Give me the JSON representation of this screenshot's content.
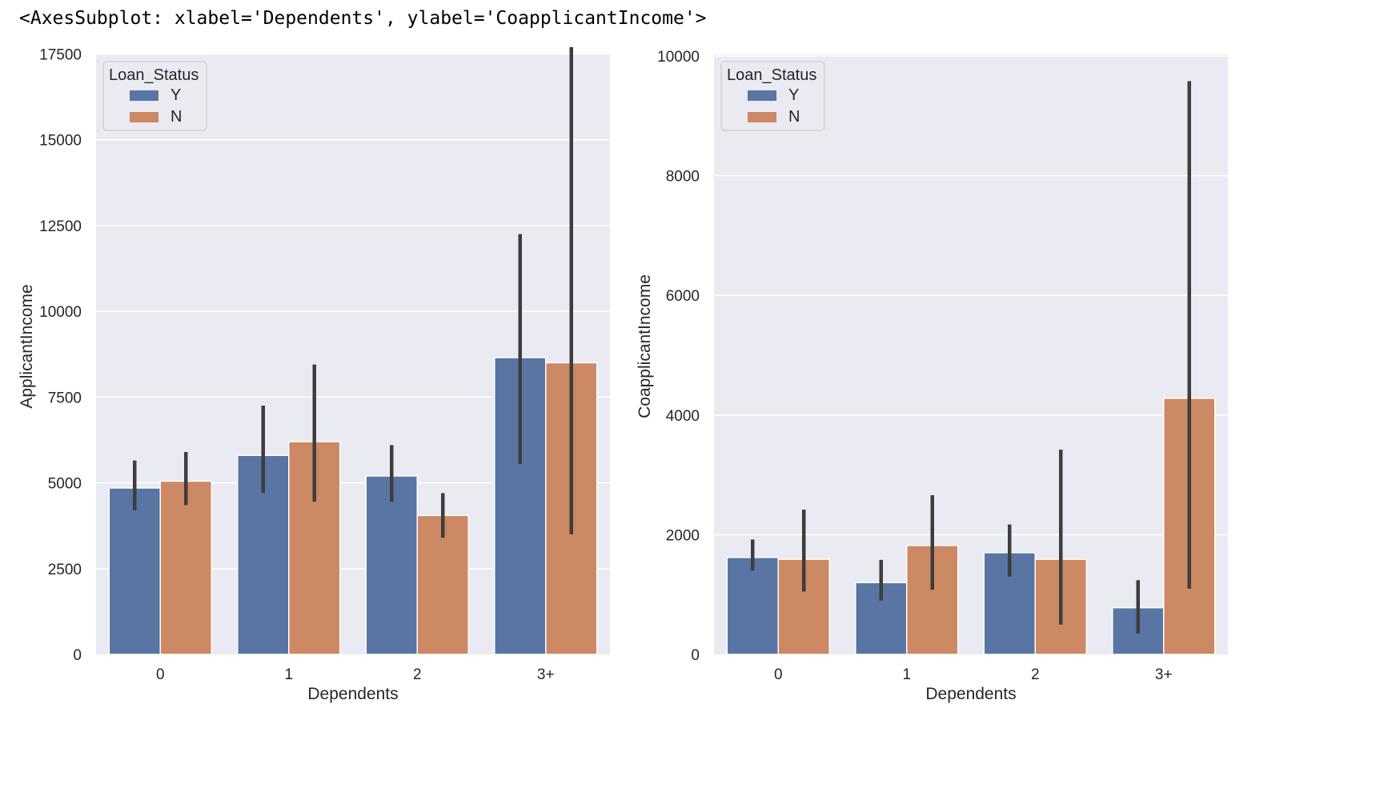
{
  "header": {
    "repr_text": "<AxesSubplot: xlabel='Dependents', ylabel='CoapplicantIncome'>"
  },
  "colors": {
    "Y": "#5975a4",
    "N": "#cc8963",
    "errorbar": "#3d3d3d",
    "plot_bg": "#eaeaf2",
    "grid": "#ffffff"
  },
  "chart_data": [
    {
      "type": "bar",
      "categories": [
        "0",
        "1",
        "2",
        "3+"
      ],
      "xlabel": "Dependents",
      "ylabel": "ApplicantIncome",
      "ylim": [
        0,
        18000
      ],
      "yticks": [
        0,
        2500,
        5000,
        7500,
        10000,
        12500,
        15000,
        17500
      ],
      "grid": true,
      "legend": {
        "title": "Loan_Status",
        "placement": "top-left"
      },
      "series": [
        {
          "name": "Y",
          "values": [
            4850,
            5800,
            5200,
            8650
          ],
          "err_low": [
            4200,
            4700,
            4450,
            5550
          ],
          "err_high": [
            5650,
            7250,
            6100,
            12250
          ]
        },
        {
          "name": "N",
          "values": [
            5050,
            6200,
            4050,
            8500
          ],
          "err_low": [
            4350,
            4450,
            3400,
            3500
          ],
          "err_high": [
            5900,
            8450,
            4700,
            17700
          ]
        }
      ]
    },
    {
      "type": "bar",
      "categories": [
        "0",
        "1",
        "2",
        "3+"
      ],
      "xlabel": "Dependents",
      "ylabel": "CoapplicantIncome",
      "ylim": [
        0,
        10000
      ],
      "yticks": [
        0,
        2000,
        4000,
        6000,
        8000,
        10000
      ],
      "grid": true,
      "legend": {
        "title": "Loan_Status",
        "placement": "top-left"
      },
      "series": [
        {
          "name": "Y",
          "values": [
            1620,
            1200,
            1700,
            780
          ],
          "err_low": [
            1400,
            900,
            1300,
            350
          ],
          "err_high": [
            1920,
            1580,
            2170,
            1240
          ]
        },
        {
          "name": "N",
          "values": [
            1590,
            1820,
            1590,
            4280
          ],
          "err_low": [
            1050,
            1080,
            500,
            1100
          ],
          "err_high": [
            2420,
            2660,
            3420,
            9580
          ]
        }
      ]
    }
  ]
}
